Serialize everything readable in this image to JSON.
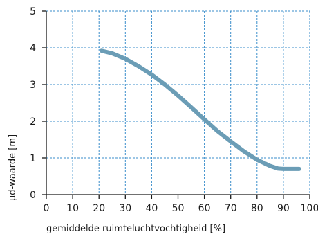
{
  "chart_data": {
    "type": "line",
    "title": "",
    "xlabel": "gemiddelde ruimteluchtvochtigheid [%]",
    "ylabel": "μd-waarde [m]",
    "xlim": [
      0,
      100
    ],
    "ylim": [
      0,
      5
    ],
    "xticks": [
      0,
      10,
      20,
      30,
      40,
      50,
      60,
      70,
      80,
      90,
      100
    ],
    "yticks": [
      0,
      1,
      2,
      3,
      4,
      5
    ],
    "grid": true,
    "grid_color": "#3a8ecb",
    "line_color": "#6b9db6",
    "axis_color": "#1a1a1a",
    "series": [
      {
        "x": [
          21,
          25,
          30,
          35,
          40,
          45,
          50,
          55,
          60,
          65,
          70,
          75,
          80,
          85,
          88,
          90,
          92,
          96
        ],
        "y": [
          3.92,
          3.85,
          3.7,
          3.5,
          3.27,
          3.0,
          2.7,
          2.38,
          2.05,
          1.73,
          1.45,
          1.18,
          0.95,
          0.78,
          0.71,
          0.7,
          0.7,
          0.7
        ]
      }
    ]
  }
}
